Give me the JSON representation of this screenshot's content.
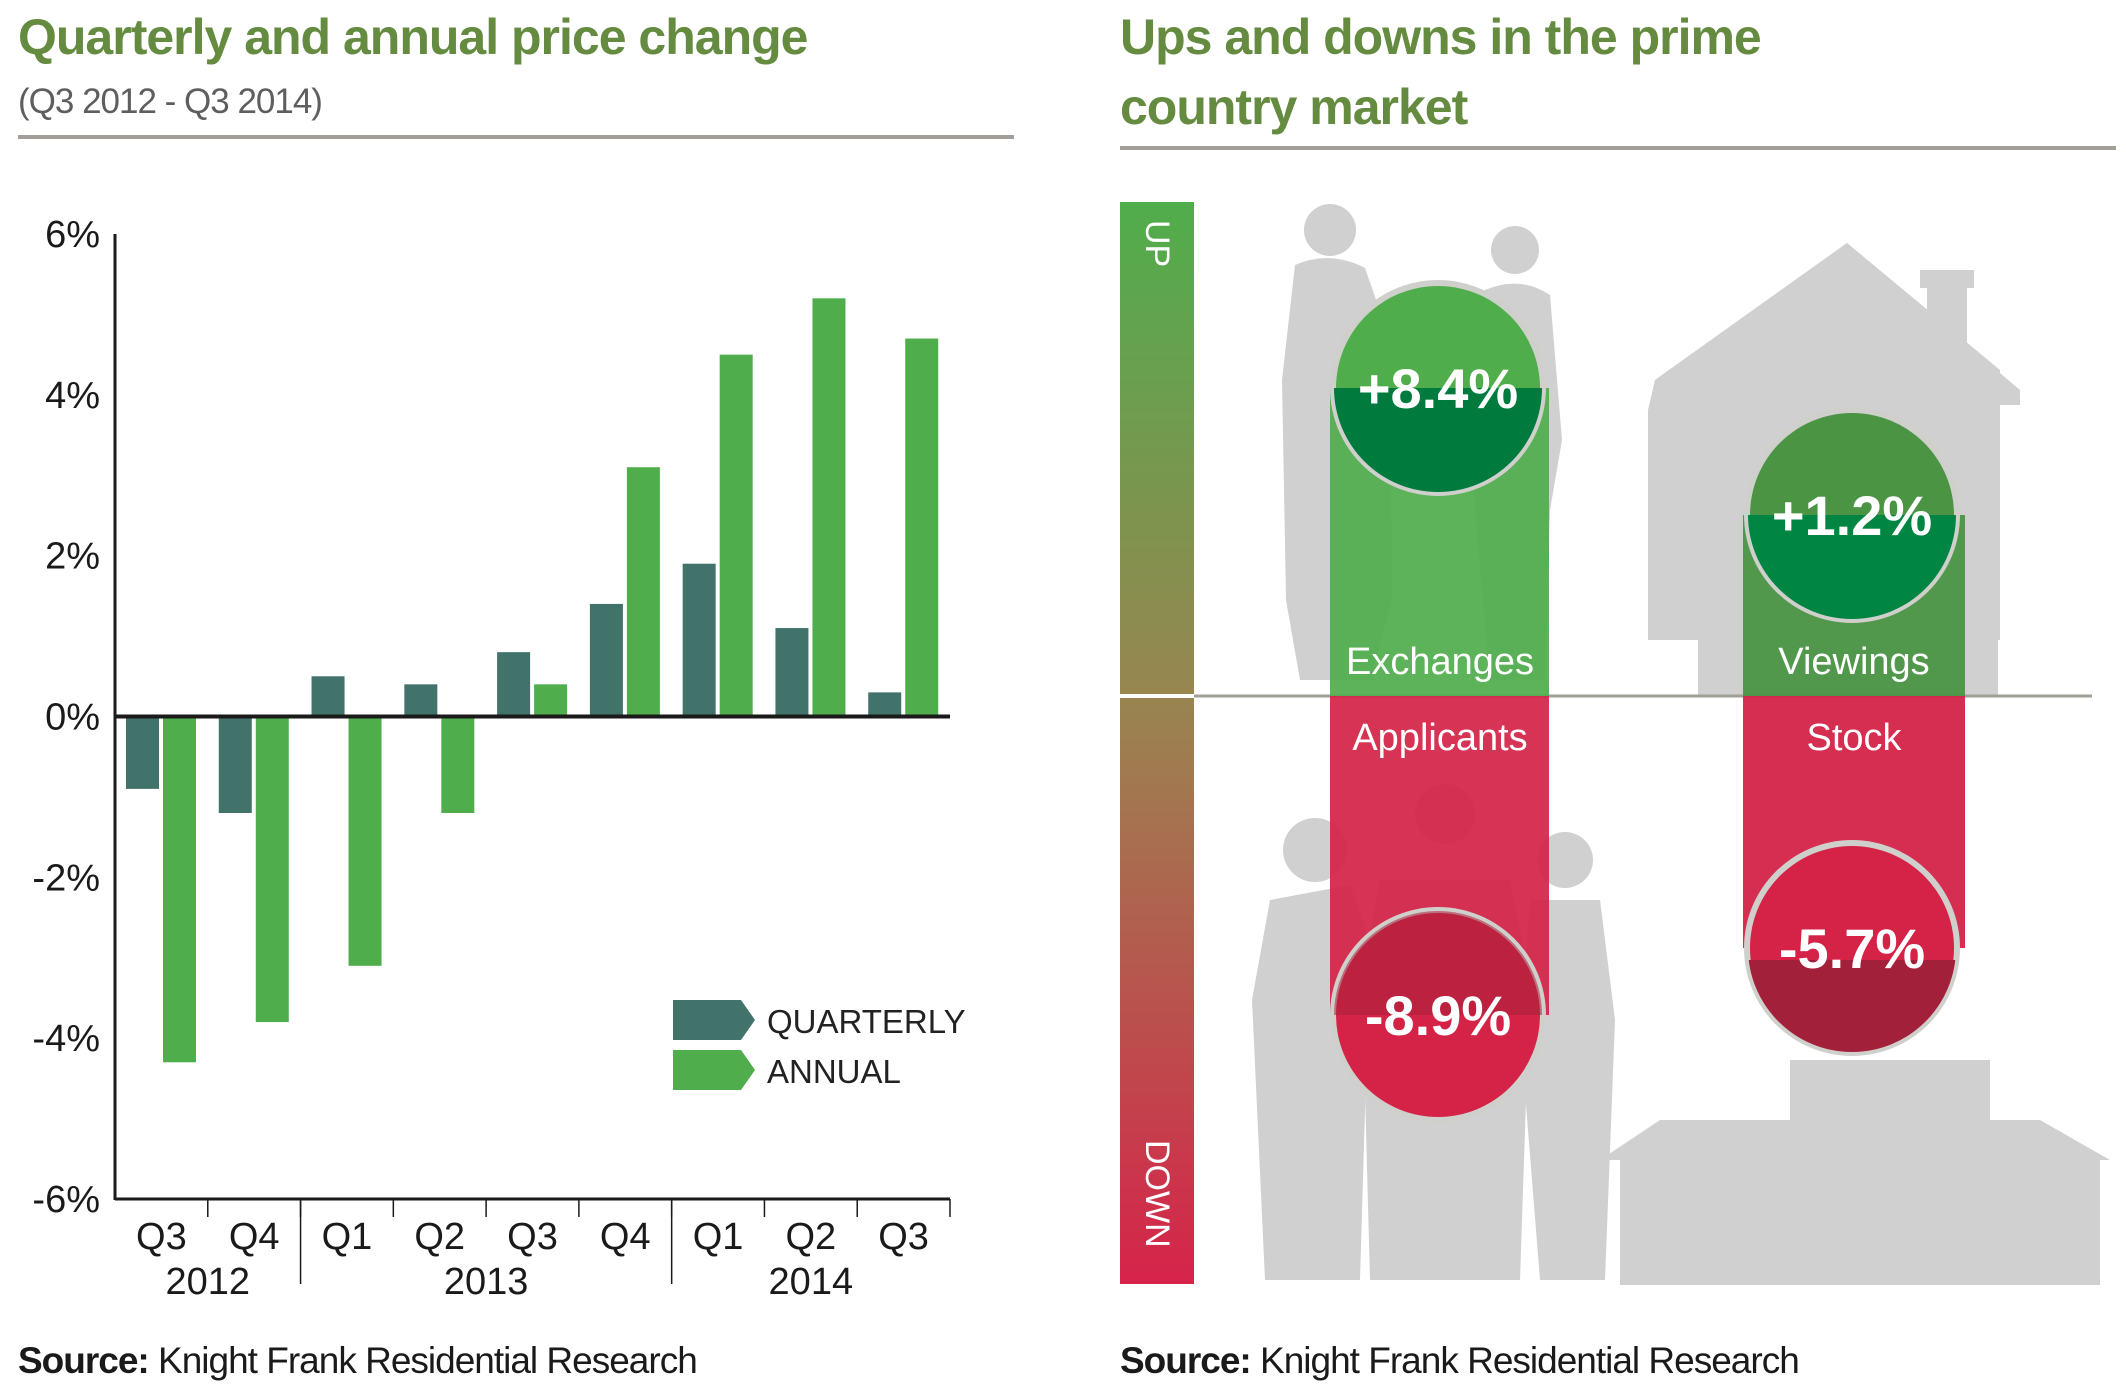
{
  "left_panel": {
    "title": "Quarterly and annual price change",
    "subtitle": "(Q3 2012 - Q3 2014)",
    "source_label": "Source:",
    "source_text": " Knight Frank Residential Research"
  },
  "right_panel": {
    "title_line1": "Ups and downs in the prime",
    "title_line2": "country market",
    "up_label": "UP",
    "down_label": "DOWN",
    "source_label": "Source:",
    "source_text": " Knight Frank Residential Research",
    "metrics": [
      {
        "name": "Exchanges",
        "value": "+8.4%",
        "direction": "up"
      },
      {
        "name": "Viewings",
        "value": "+1.2%",
        "direction": "up"
      },
      {
        "name": "Applicants",
        "value": "-8.9%",
        "direction": "down"
      },
      {
        "name": "Stock",
        "value": "-5.7%",
        "direction": "down"
      }
    ],
    "colors": {
      "up": "#50ad4c",
      "down": "#d42347",
      "up_dark": "#007a3d",
      "down_dark": "#a3203b"
    }
  },
  "chart_data": {
    "type": "bar",
    "title": "Quarterly and annual price change",
    "subtitle": "(Q3 2012 - Q3 2014)",
    "xlabel": "",
    "ylabel": "",
    "categories": [
      "Q3",
      "Q4",
      "Q1",
      "Q2",
      "Q3",
      "Q4",
      "Q1",
      "Q2",
      "Q3"
    ],
    "year_groups": [
      {
        "label": "2012",
        "span": 2
      },
      {
        "label": "2013",
        "span": 4
      },
      {
        "label": "2014",
        "span": 3
      }
    ],
    "series": [
      {
        "name": "QUARTERLY",
        "color": "#41736a",
        "values": [
          -0.9,
          -1.2,
          0.5,
          0.4,
          0.8,
          1.4,
          1.9,
          1.1,
          0.3
        ]
      },
      {
        "name": "ANNUAL",
        "color": "#50ad4c",
        "values": [
          -4.3,
          -3.8,
          -3.1,
          -1.2,
          0.4,
          3.1,
          4.5,
          5.2,
          4.7
        ]
      }
    ],
    "ylim": [
      -6,
      6
    ],
    "yticks": [
      6,
      4,
      2,
      0,
      -2,
      -4,
      -6
    ],
    "ytick_labels": [
      "6%",
      "4%",
      "2%",
      "0%",
      "-2%",
      "-4%",
      "-6%"
    ],
    "grid": false,
    "legend_position": "bottom-right"
  }
}
